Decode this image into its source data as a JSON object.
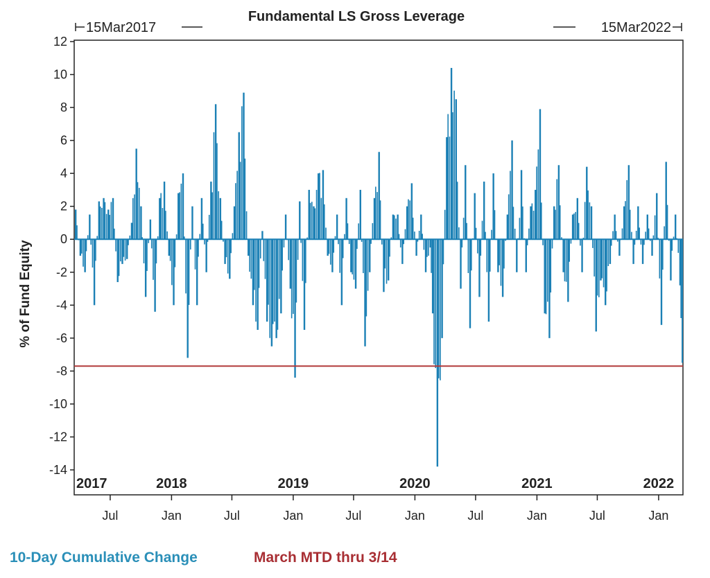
{
  "chart_data": {
    "type": "bar",
    "title": "Fundamental LS Gross Leverage",
    "range_start": "15Mar2017",
    "range_end": "15Mar2022",
    "ylabel": "% of Fund Equity",
    "xlabel": "",
    "ylim": [
      -14,
      12
    ],
    "yticks": [
      12,
      10,
      8,
      6,
      4,
      2,
      0,
      -2,
      -4,
      -6,
      -8,
      -10,
      -12,
      -14
    ],
    "x_range": [
      "2017-03-15",
      "2022-03-15"
    ],
    "year_labels": [
      {
        "text": "2017",
        "date": "2017-03-15"
      },
      {
        "text": "2018",
        "date": "2018-01-01"
      },
      {
        "text": "2019",
        "date": "2019-01-01"
      },
      {
        "text": "2020",
        "date": "2020-01-01"
      },
      {
        "text": "2021",
        "date": "2021-01-01"
      },
      {
        "text": "2022",
        "date": "2022-01-01"
      }
    ],
    "month_ticks": [
      {
        "label": "Jul",
        "date": "2017-07-01"
      },
      {
        "label": "Jan",
        "date": "2018-01-01"
      },
      {
        "label": "Jul",
        "date": "2018-07-01"
      },
      {
        "label": "Jan",
        "date": "2019-01-01"
      },
      {
        "label": "Jul",
        "date": "2019-07-01"
      },
      {
        "label": "Jan",
        "date": "2020-01-01"
      },
      {
        "label": "Jul",
        "date": "2020-07-01"
      },
      {
        "label": "Jan",
        "date": "2021-01-01"
      },
      {
        "label": "Jul",
        "date": "2021-07-01"
      },
      {
        "label": "Jan",
        "date": "2022-01-01"
      }
    ],
    "grid": false,
    "legend_position": "bottom-left",
    "series": [
      {
        "name": "10-Day Cumulative Change",
        "color": "#1b80b5",
        "type": "bar",
        "points": [
          {
            "date": "2017-03-17",
            "value": 1.8
          },
          {
            "date": "2017-03-31",
            "value": -1.0
          },
          {
            "date": "2017-04-14",
            "value": -2.0
          },
          {
            "date": "2017-04-28",
            "value": 1.5
          },
          {
            "date": "2017-05-12",
            "value": -4.0
          },
          {
            "date": "2017-05-26",
            "value": 2.3
          },
          {
            "date": "2017-06-09",
            "value": 2.5
          },
          {
            "date": "2017-06-23",
            "value": 1.8
          },
          {
            "date": "2017-07-07",
            "value": 2.5
          },
          {
            "date": "2017-07-21",
            "value": -2.6
          },
          {
            "date": "2017-08-04",
            "value": -1.5
          },
          {
            "date": "2017-08-18",
            "value": -1.2
          },
          {
            "date": "2017-09-01",
            "value": 1.0
          },
          {
            "date": "2017-09-15",
            "value": 5.5
          },
          {
            "date": "2017-09-29",
            "value": 2.0
          },
          {
            "date": "2017-10-13",
            "value": -3.5
          },
          {
            "date": "2017-10-27",
            "value": 1.2
          },
          {
            "date": "2017-11-10",
            "value": -4.4
          },
          {
            "date": "2017-11-24",
            "value": 2.5
          },
          {
            "date": "2017-12-08",
            "value": 3.5
          },
          {
            "date": "2017-12-22",
            "value": -1.0
          },
          {
            "date": "2018-01-05",
            "value": -4.0
          },
          {
            "date": "2018-01-19",
            "value": 2.8
          },
          {
            "date": "2018-02-02",
            "value": 4.0
          },
          {
            "date": "2018-02-16",
            "value": -7.2
          },
          {
            "date": "2018-03-02",
            "value": 2.0
          },
          {
            "date": "2018-03-16",
            "value": -4.0
          },
          {
            "date": "2018-03-30",
            "value": 2.5
          },
          {
            "date": "2018-04-13",
            "value": -2.0
          },
          {
            "date": "2018-04-27",
            "value": 3.5
          },
          {
            "date": "2018-05-11",
            "value": 8.2
          },
          {
            "date": "2018-05-25",
            "value": 2.5
          },
          {
            "date": "2018-06-08",
            "value": -1.5
          },
          {
            "date": "2018-06-22",
            "value": -2.4
          },
          {
            "date": "2018-07-06",
            "value": 2.0
          },
          {
            "date": "2018-07-20",
            "value": 6.5
          },
          {
            "date": "2018-08-03",
            "value": 8.9
          },
          {
            "date": "2018-08-17",
            "value": -1.0
          },
          {
            "date": "2018-08-31",
            "value": -4.0
          },
          {
            "date": "2018-09-14",
            "value": -5.5
          },
          {
            "date": "2018-09-28",
            "value": 0.5
          },
          {
            "date": "2018-10-12",
            "value": -5.0
          },
          {
            "date": "2018-10-26",
            "value": -6.5
          },
          {
            "date": "2018-11-09",
            "value": -6.0
          },
          {
            "date": "2018-11-23",
            "value": -4.5
          },
          {
            "date": "2018-12-07",
            "value": 1.5
          },
          {
            "date": "2018-12-21",
            "value": -3.0
          },
          {
            "date": "2019-01-04",
            "value": -8.4
          },
          {
            "date": "2019-01-18",
            "value": 2.3
          },
          {
            "date": "2019-02-01",
            "value": -5.5
          },
          {
            "date": "2019-02-15",
            "value": 3.0
          },
          {
            "date": "2019-03-01",
            "value": 2.0
          },
          {
            "date": "2019-03-15",
            "value": 4.0
          },
          {
            "date": "2019-03-29",
            "value": 4.2
          },
          {
            "date": "2019-04-12",
            "value": -1.0
          },
          {
            "date": "2019-04-26",
            "value": -2.0
          },
          {
            "date": "2019-05-10",
            "value": 1.5
          },
          {
            "date": "2019-05-24",
            "value": -4.0
          },
          {
            "date": "2019-06-07",
            "value": 2.5
          },
          {
            "date": "2019-06-21",
            "value": -2.0
          },
          {
            "date": "2019-07-05",
            "value": -3.0
          },
          {
            "date": "2019-07-19",
            "value": 3.0
          },
          {
            "date": "2019-08-02",
            "value": -6.5
          },
          {
            "date": "2019-08-16",
            "value": -2.0
          },
          {
            "date": "2019-08-30",
            "value": 2.5
          },
          {
            "date": "2019-09-13",
            "value": 5.3
          },
          {
            "date": "2019-09-27",
            "value": -3.2
          },
          {
            "date": "2019-10-11",
            "value": -2.5
          },
          {
            "date": "2019-10-25",
            "value": 1.5
          },
          {
            "date": "2019-11-08",
            "value": 1.5
          },
          {
            "date": "2019-11-22",
            "value": -1.5
          },
          {
            "date": "2019-12-06",
            "value": 2.0
          },
          {
            "date": "2019-12-20",
            "value": 3.4
          },
          {
            "date": "2020-01-03",
            "value": -1.0
          },
          {
            "date": "2020-01-17",
            "value": 1.5
          },
          {
            "date": "2020-01-31",
            "value": -2.0
          },
          {
            "date": "2020-02-14",
            "value": -0.5
          },
          {
            "date": "2020-02-21",
            "value": -4.5
          },
          {
            "date": "2020-03-06",
            "value": -13.8
          },
          {
            "date": "2020-03-20",
            "value": -6.0
          },
          {
            "date": "2020-04-03",
            "value": 6.2
          },
          {
            "date": "2020-04-17",
            "value": 10.4
          },
          {
            "date": "2020-05-01",
            "value": 8.5
          },
          {
            "date": "2020-05-15",
            "value": -3.0
          },
          {
            "date": "2020-05-29",
            "value": 4.5
          },
          {
            "date": "2020-06-12",
            "value": -5.4
          },
          {
            "date": "2020-06-26",
            "value": 2.8
          },
          {
            "date": "2020-07-10",
            "value": -3.5
          },
          {
            "date": "2020-07-24",
            "value": 3.5
          },
          {
            "date": "2020-08-07",
            "value": -5.0
          },
          {
            "date": "2020-08-21",
            "value": 4.0
          },
          {
            "date": "2020-09-04",
            "value": -2.0
          },
          {
            "date": "2020-09-18",
            "value": -3.5
          },
          {
            "date": "2020-10-02",
            "value": 1.5
          },
          {
            "date": "2020-10-16",
            "value": 6.0
          },
          {
            "date": "2020-10-30",
            "value": -2.0
          },
          {
            "date": "2020-11-13",
            "value": 4.2
          },
          {
            "date": "2020-11-27",
            "value": -2.0
          },
          {
            "date": "2020-12-11",
            "value": 2.0
          },
          {
            "date": "2020-12-25",
            "value": 3.0
          },
          {
            "date": "2021-01-08",
            "value": 7.9
          },
          {
            "date": "2021-01-22",
            "value": -4.5
          },
          {
            "date": "2021-02-05",
            "value": -6.0
          },
          {
            "date": "2021-02-19",
            "value": 2.0
          },
          {
            "date": "2021-03-05",
            "value": 4.5
          },
          {
            "date": "2021-03-19",
            "value": -2.0
          },
          {
            "date": "2021-04-02",
            "value": -3.8
          },
          {
            "date": "2021-04-16",
            "value": 1.5
          },
          {
            "date": "2021-04-30",
            "value": 2.5
          },
          {
            "date": "2021-05-14",
            "value": -2.0
          },
          {
            "date": "2021-05-28",
            "value": 4.4
          },
          {
            "date": "2021-06-11",
            "value": 2.0
          },
          {
            "date": "2021-06-25",
            "value": -5.6
          },
          {
            "date": "2021-07-09",
            "value": -2.5
          },
          {
            "date": "2021-07-23",
            "value": -4.0
          },
          {
            "date": "2021-08-06",
            "value": -1.5
          },
          {
            "date": "2021-08-20",
            "value": 1.5
          },
          {
            "date": "2021-09-03",
            "value": -1.0
          },
          {
            "date": "2021-09-17",
            "value": 2.0
          },
          {
            "date": "2021-10-01",
            "value": 4.5
          },
          {
            "date": "2021-10-15",
            "value": -1.5
          },
          {
            "date": "2021-10-29",
            "value": 2.0
          },
          {
            "date": "2021-11-12",
            "value": -1.5
          },
          {
            "date": "2021-11-26",
            "value": 1.5
          },
          {
            "date": "2021-12-10",
            "value": -1.0
          },
          {
            "date": "2021-12-24",
            "value": 2.8
          },
          {
            "date": "2022-01-07",
            "value": -5.2
          },
          {
            "date": "2022-01-21",
            "value": 4.7
          },
          {
            "date": "2022-02-04",
            "value": -2.5
          },
          {
            "date": "2022-02-18",
            "value": 1.5
          },
          {
            "date": "2022-03-04",
            "value": -2.8
          },
          {
            "date": "2022-03-11",
            "value": -7.5
          }
        ]
      },
      {
        "name": "March MTD thru 3/14",
        "color": "#b23a3a",
        "type": "hline",
        "value": -7.7
      }
    ]
  }
}
